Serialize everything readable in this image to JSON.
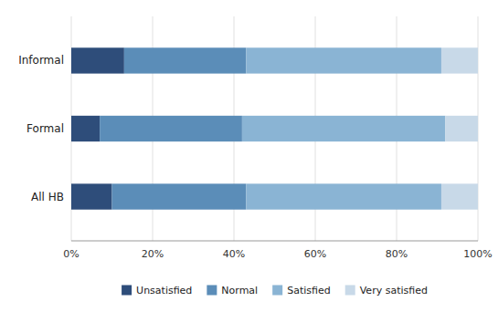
{
  "chart_data": {
    "type": "bar",
    "orientation": "horizontal",
    "stacked": true,
    "categories": [
      "All HB",
      "Formal",
      "Informal"
    ],
    "series": [
      {
        "name": "Unsatisfied",
        "color": "#2e4d7a",
        "values": [
          10,
          7,
          13
        ]
      },
      {
        "name": "Normal",
        "color": "#5b8db8",
        "values": [
          33,
          35,
          30
        ]
      },
      {
        "name": "Satisfied",
        "color": "#8ab4d4",
        "values": [
          48,
          50,
          48
        ]
      },
      {
        "name": "Very satisfied",
        "color": "#c8d9e8",
        "values": [
          9,
          8,
          9
        ]
      }
    ],
    "xlim": [
      0,
      100
    ],
    "xticks": [
      {
        "value": 0,
        "label": "0%"
      },
      {
        "value": 20,
        "label": "20%"
      },
      {
        "value": 40,
        "label": "40%"
      },
      {
        "value": 60,
        "label": "60%"
      },
      {
        "value": 80,
        "label": "80%"
      },
      {
        "value": 100,
        "label": "100%"
      }
    ],
    "grid": true,
    "legend": "bottom"
  }
}
